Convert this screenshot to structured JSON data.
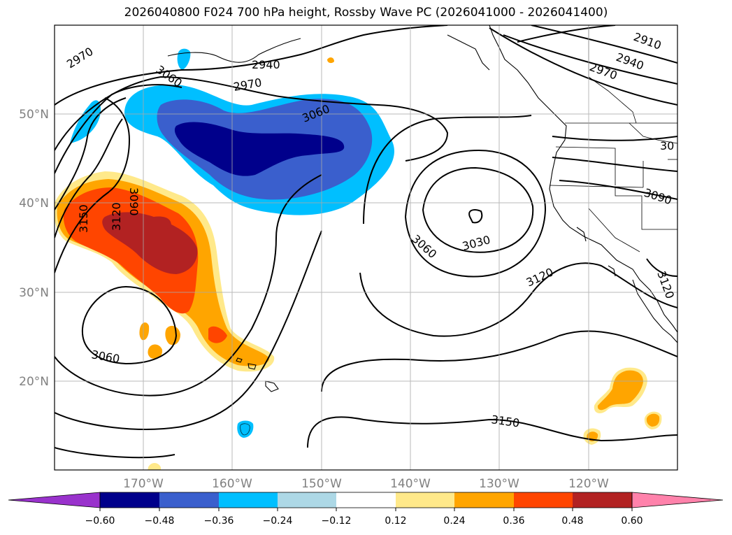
{
  "title": "2026040800 F024 700 hPa height, Rossby Wave PC (2026041000 - 2026041400)",
  "latitude_labels": [
    "50°N",
    "40°N",
    "30°N",
    "20°N"
  ],
  "longitude_labels": [
    "170°W",
    "160°W",
    "150°W",
    "140°W",
    "130°W",
    "120°W"
  ],
  "contour_labels": [
    "2970",
    "3060",
    "2940",
    "2970",
    "3060",
    "2910",
    "2940",
    "2970",
    "3060",
    "3030",
    "3120",
    "3150",
    "3120",
    "3090",
    "3060",
    "3150",
    "30",
    "3090",
    "3120"
  ],
  "colorbar": {
    "ticks": [
      "−0.60",
      "−0.48",
      "−0.36",
      "−0.24",
      "−0.12",
      "0.12",
      "0.24",
      "0.36",
      "0.48",
      "0.60"
    ],
    "colors": [
      "#9932cc",
      "#00008b",
      "#3a5fcd",
      "#00bfff",
      "#add8e6",
      "#ffffff",
      "#ffe98a",
      "#ffa500",
      "#ff4500",
      "#b22222",
      "#ff82ab"
    ]
  }
}
